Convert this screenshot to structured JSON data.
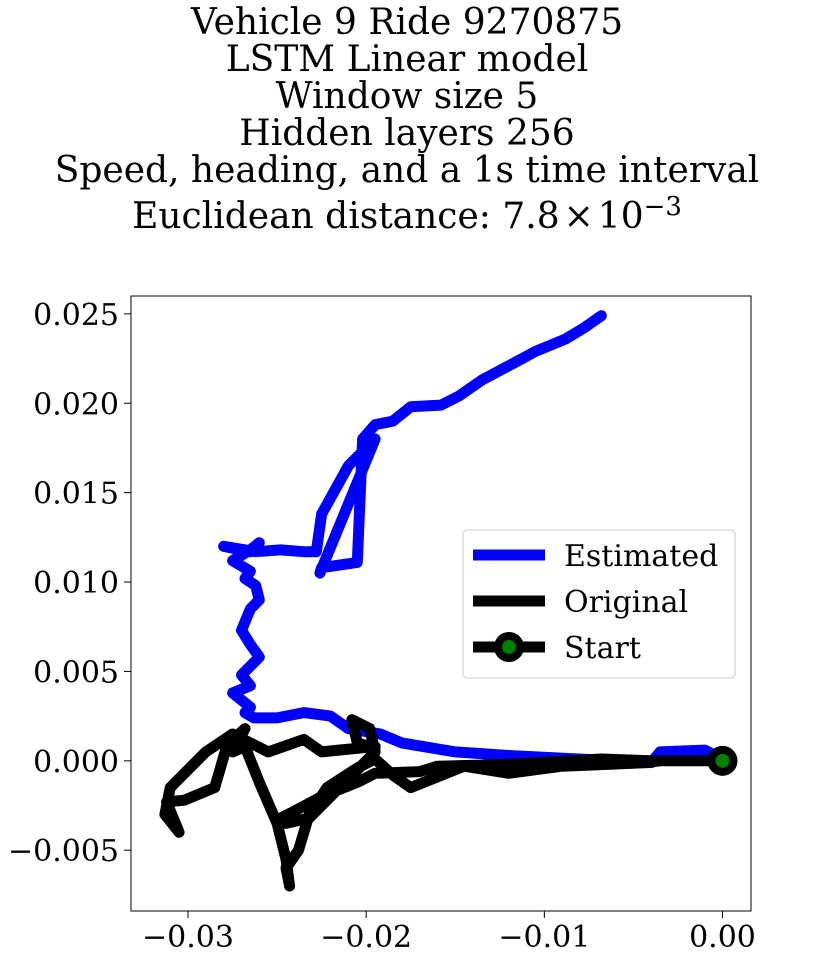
{
  "chart_data": {
    "type": "line",
    "title_lines": [
      "Vehicle 9 Ride 9270875",
      "LSTM Linear model",
      "Window size 5",
      "Hidden layers 256",
      "Speed, heading, and a 1s time interval"
    ],
    "metric_label": "Euclidean distance: ",
    "metric_mantissa": "7.8",
    "metric_times": "×",
    "metric_base": "10",
    "metric_exponent": "−3",
    "xlim": [
      -0.0332,
      0.0016
    ],
    "ylim": [
      -0.0084,
      0.026
    ],
    "x_ticks": [
      {
        "value": -0.03,
        "label": "−0.03"
      },
      {
        "value": -0.02,
        "label": "−0.02"
      },
      {
        "value": -0.01,
        "label": "−0.01"
      },
      {
        "value": 0.0,
        "label": "0.00"
      }
    ],
    "y_ticks": [
      {
        "value": 0.025,
        "label": "0.025"
      },
      {
        "value": 0.02,
        "label": "0.020"
      },
      {
        "value": 0.015,
        "label": "0.015"
      },
      {
        "value": 0.01,
        "label": "0.010"
      },
      {
        "value": 0.005,
        "label": "0.005"
      },
      {
        "value": 0.0,
        "label": "0.000"
      },
      {
        "value": -0.005,
        "label": "−0.005"
      }
    ],
    "grid": false,
    "legend_position": "center-right",
    "series": [
      {
        "name": "Estimated",
        "color": "#0000ff",
        "x": [
          0,
          -0.001,
          -0.0035,
          -0.004,
          -0.012,
          -0.015,
          -0.018,
          -0.0192,
          -0.021,
          -0.022,
          -0.0235,
          -0.025,
          -0.0263,
          -0.0268,
          -0.0265,
          -0.0275,
          -0.0265,
          -0.027,
          -0.026,
          -0.0265,
          -0.027,
          -0.0265,
          -0.026,
          -0.0262,
          -0.0268,
          -0.0265,
          -0.0275,
          -0.0265,
          -0.026,
          -0.0265,
          -0.028,
          -0.0262,
          -0.0248,
          -0.0235,
          -0.0228,
          -0.0225,
          -0.021,
          -0.0195,
          -0.0226,
          -0.0225,
          -0.0205,
          -0.0202,
          -0.0195,
          -0.0185,
          -0.0175,
          -0.0158,
          -0.0148,
          -0.0135,
          -0.0118,
          -0.0105,
          -0.0088,
          -0.0078,
          -0.0068
        ],
        "y": [
          0.0001,
          0.0006,
          0.0005,
          -0.0001,
          0.0003,
          0.0005,
          0.001,
          0.0015,
          0.0018,
          0.0025,
          0.0027,
          0.0024,
          0.0024,
          0.0027,
          0.003,
          0.0038,
          0.0042,
          0.0048,
          0.0058,
          0.0065,
          0.0073,
          0.0085,
          0.009,
          0.0098,
          0.0102,
          0.0106,
          0.0112,
          0.0118,
          0.0122,
          0.0117,
          0.012,
          0.0117,
          0.0118,
          0.0117,
          0.0117,
          0.0138,
          0.0165,
          0.018,
          0.0105,
          0.0108,
          0.0111,
          0.018,
          0.0188,
          0.019,
          0.0198,
          0.0199,
          0.0204,
          0.0213,
          0.0222,
          0.0229,
          0.0236,
          0.0242,
          0.0249
        ]
      },
      {
        "name": "Original",
        "color": "#000000",
        "x": [
          0,
          -0.004,
          -0.0068,
          -0.012,
          -0.016,
          -0.017,
          -0.0195,
          -0.0205,
          -0.0225,
          -0.024,
          -0.025,
          -0.0245,
          -0.0232,
          -0.0225,
          -0.0215,
          -0.0205,
          -0.0195,
          -0.0198,
          -0.0208,
          -0.0205,
          -0.0195,
          -0.0195,
          -0.0225,
          -0.0235,
          -0.0255,
          -0.0275,
          -0.029,
          -0.031,
          -0.0313,
          -0.0305,
          -0.0312,
          -0.0302,
          -0.0285,
          -0.0278,
          -0.0268,
          -0.0275,
          -0.0268,
          -0.026,
          -0.025,
          -0.0245,
          -0.0243,
          -0.0245,
          -0.0238,
          -0.0232,
          -0.0222,
          -0.0205,
          -0.0195,
          -0.0185,
          -0.0175,
          -0.0145,
          -0.012,
          -0.009,
          -0.0065,
          -0.0042,
          -0.0035,
          0
        ],
        "y": [
          0,
          0,
          0.0001,
          -0.0002,
          -0.0003,
          -0.0006,
          -0.0007,
          -0.0012,
          -0.002,
          -0.0028,
          -0.0033,
          -0.0035,
          -0.0032,
          -0.0025,
          -0.0015,
          -0.0005,
          0.0005,
          0.0018,
          0.0023,
          0.001,
          0.0007,
          0.0008,
          0.0005,
          0.0012,
          0.0005,
          0.0015,
          0.0005,
          -0.0015,
          -0.003,
          -0.004,
          -0.0023,
          -0.0022,
          -0.0015,
          0.0009,
          0.0018,
          0.0005,
          0.0008,
          -0.0012,
          -0.0035,
          -0.0055,
          -0.007,
          -0.006,
          -0.005,
          -0.003,
          -0.0015,
          -0.0004,
          0.0001,
          -0.0008,
          -0.0015,
          -0.0003,
          -0.0007,
          -0.0003,
          -0.0002,
          -0.0001,
          0,
          0
        ]
      }
    ],
    "markers": [
      {
        "name": "Start",
        "x": 0,
        "y": 0,
        "edge_color": "#000000",
        "face_color": "#008000"
      }
    ],
    "legend": [
      {
        "label": "Estimated",
        "color": "#0000ff",
        "marker": false
      },
      {
        "label": "Original",
        "color": "#000000",
        "marker": false
      },
      {
        "label": "Start",
        "color": "#000000",
        "marker": true,
        "marker_face": "#008000"
      }
    ]
  }
}
